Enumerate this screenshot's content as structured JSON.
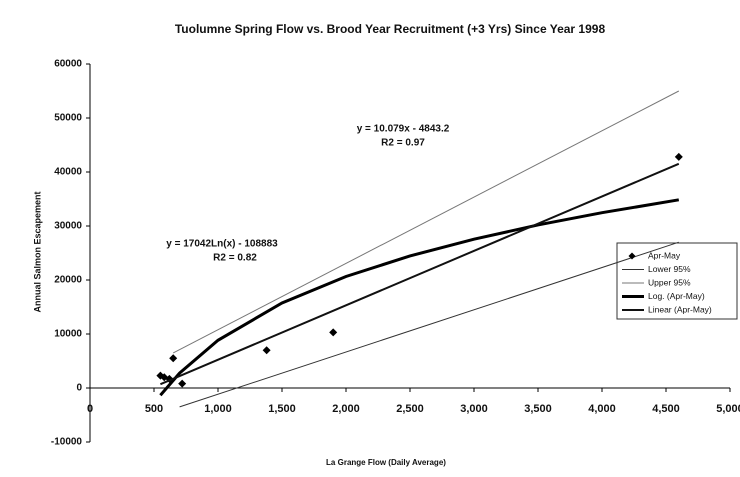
{
  "chart_data": {
    "type": "scatter",
    "title": "Tuolumne Spring Flow vs. Brood Year Recruitment (+3 Yrs) Since Year 1998",
    "x_label": "La Grange Flow (Daily Average)",
    "y_label": "Annual Salmon Escapement",
    "xlim": [
      0,
      5000
    ],
    "ylim": [
      -10000,
      60000
    ],
    "xticks": [
      0,
      500,
      {
        "value": 1000,
        "label": "1,000"
      },
      {
        "value": 1500,
        "label": "1,500"
      },
      {
        "value": 2000,
        "label": "2,000"
      },
      {
        "value": 2500,
        "label": "2,500"
      },
      {
        "value": 3000,
        "label": "3,000"
      },
      {
        "value": 3500,
        "label": "3,500"
      },
      {
        "value": 4000,
        "label": "4,000"
      },
      {
        "value": 4500,
        "label": "4,500"
      },
      {
        "value": 5000,
        "label": "5,000"
      }
    ],
    "yticks": [
      -10000,
      0,
      10000,
      20000,
      30000,
      40000,
      50000,
      60000
    ],
    "legend": "right",
    "series": [
      {
        "name": "Apr-May",
        "type": "scatter",
        "color": "#000000",
        "x": [
          550,
          580,
          620,
          650,
          720,
          1380,
          1900,
          4600
        ],
        "values": [
          2300,
          2000,
          1700,
          5500,
          800,
          7000,
          10300,
          42800
        ]
      },
      {
        "name": "Lower 95%",
        "type": "line",
        "color": "#333333",
        "x": [
          700,
          4600
        ],
        "values": [
          -3500,
          27000
        ]
      },
      {
        "name": "Upper 95%",
        "type": "line",
        "color": "#777777",
        "x": [
          650,
          4600
        ],
        "values": [
          6500,
          55000
        ]
      },
      {
        "name": "Log. (Apr-May)",
        "type": "line",
        "color": "#000000",
        "x": [
          550,
          700,
          1000,
          1500,
          2000,
          2500,
          3000,
          3500,
          4000,
          4600
        ],
        "values": [
          -1343,
          2761,
          8837,
          15747,
          20652,
          24454,
          27555,
          30197,
          32462,
          34848
        ]
      },
      {
        "name": "Linear (Apr-May)",
        "type": "line",
        "color": "#111111",
        "x": [
          550,
          4600
        ],
        "values": [
          700,
          41520
        ]
      }
    ],
    "annotations": [
      "y = 10.079x - 4843.2",
      "R2 = 0.97",
      "y = 17042Ln(x) - 108883",
      "R2 = 0.82"
    ]
  }
}
